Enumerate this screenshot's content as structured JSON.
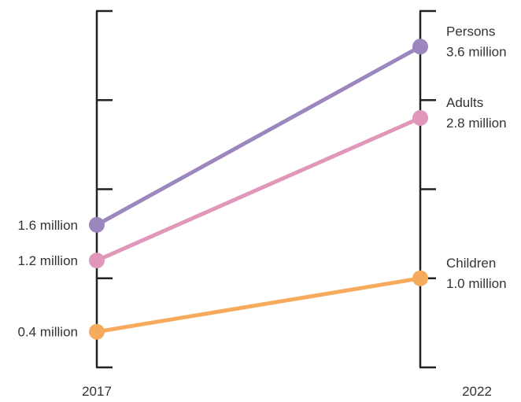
{
  "chart_data": {
    "type": "line",
    "subtype": "slope",
    "x": [
      "2017",
      "2022"
    ],
    "ylim": [
      0,
      4
    ],
    "y_ticks": [
      0,
      1,
      2,
      3,
      4
    ],
    "series": [
      {
        "name": "Persons",
        "values": [
          1.6,
          3.6
        ],
        "color": "#9b86bd",
        "start_label": "1.6 million",
        "end_label": "3.6 million"
      },
      {
        "name": "Adults",
        "values": [
          1.2,
          2.8
        ],
        "color": "#e197b9",
        "start_label": "1.2 million",
        "end_label": "2.8 million"
      },
      {
        "name": "Children",
        "values": [
          0.4,
          1.0
        ],
        "color": "#f6aa5c",
        "start_label": "0.4 million",
        "end_label": "1.0 million"
      }
    ],
    "axis_color": "#222222",
    "grid": false,
    "legend": "none"
  }
}
